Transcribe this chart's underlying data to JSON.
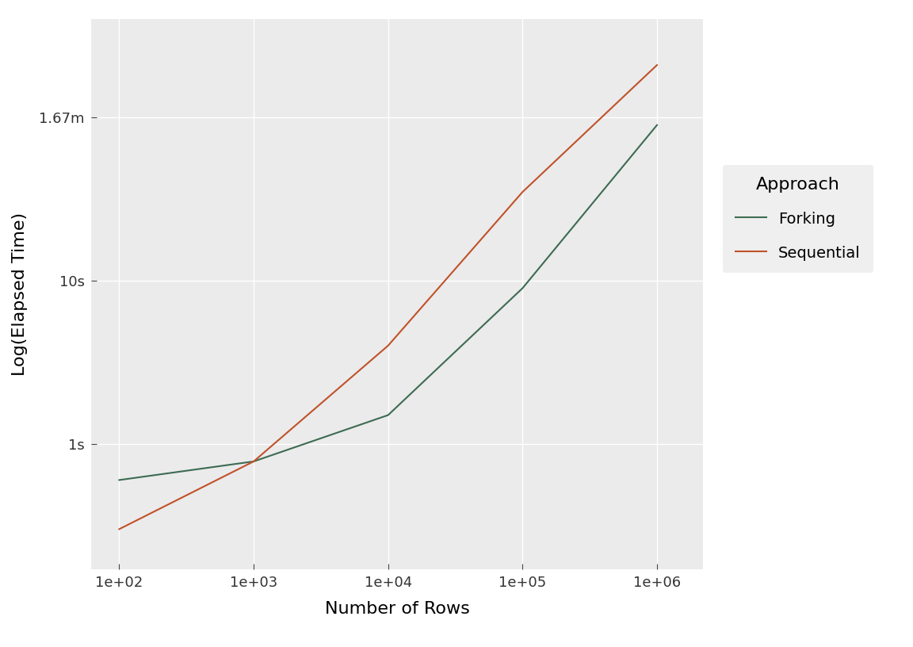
{
  "forking_x": [
    100,
    1000,
    10000,
    100000,
    1000000
  ],
  "forking_y": [
    0.6,
    0.78,
    1.5,
    9.0,
    90.0
  ],
  "sequential_x": [
    100,
    1000,
    10000,
    100000,
    1000000
  ],
  "sequential_y": [
    0.3,
    0.78,
    4.0,
    35.0,
    210.0
  ],
  "forking_color": "#3d6b52",
  "sequential_color": "#c0522a",
  "line_width": 1.5,
  "plot_bg_color": "#ebebeb",
  "fig_bg_color": "#ffffff",
  "grid_color": "#ffffff",
  "grid_linewidth": 1.0,
  "xlabel": "Number of Rows",
  "ylabel": "Log(Elapsed Time)",
  "xlabel_fontsize": 16,
  "ylabel_fontsize": 16,
  "legend_title": "Approach",
  "legend_title_fontsize": 16,
  "legend_fontsize": 14,
  "tick_labelsize": 13,
  "ytick_labels": [
    "1s",
    "10s",
    "1.67m"
  ],
  "ytick_values": [
    1.0,
    10.0,
    100.2
  ],
  "xtick_values": [
    100,
    1000,
    10000,
    100000,
    1000000
  ],
  "xtick_labels": [
    "1e+02",
    "1e+03",
    "1e+04",
    "1e+05",
    "1e+06"
  ],
  "xlim": [
    62,
    2200000
  ],
  "ylim": [
    0.17,
    400
  ]
}
